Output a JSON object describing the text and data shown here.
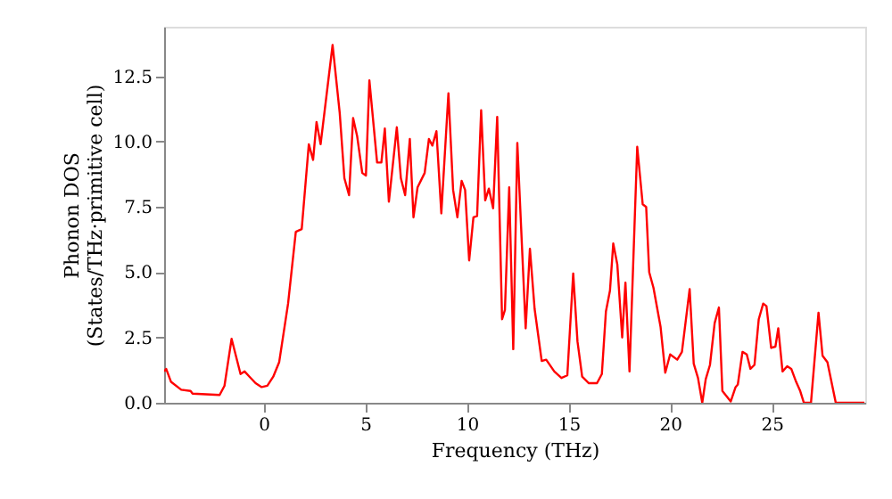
{
  "chart_data": {
    "type": "line",
    "xlabel": "Frequency (THz)",
    "ylabel": "Phonon DOS\n(States/THz·primitive cell)",
    "xlim": [
      -4.9,
      29.6
    ],
    "ylim": [
      0,
      14.4
    ],
    "xticks": [
      0,
      5,
      10,
      15,
      20,
      25
    ],
    "yticks": [
      {
        "value": 0,
        "label": "0.0"
      },
      2.5,
      {
        "value": 5,
        "label": "5.0"
      },
      7.5,
      {
        "value": 10,
        "label": "10.0"
      },
      12.5
    ],
    "grid": false,
    "marker": "none",
    "line_style": "solid",
    "series": [
      {
        "color": "#ff0000",
        "x": [
          -4.9,
          -4.8,
          -4.56,
          -4.06,
          -3.6,
          -3.5,
          -2.17,
          -1.93,
          -1.58,
          -1.14,
          -0.94,
          -0.7,
          -0.4,
          -0.1,
          0.18,
          0.47,
          0.76,
          1.2,
          1.58,
          1.87,
          2.22,
          2.43,
          2.6,
          2.8,
          3.39,
          3.74,
          3.97,
          4.2,
          4.4,
          4.6,
          4.85,
          5.03,
          5.2,
          5.58,
          5.79,
          5.96,
          6.16,
          6.55,
          6.75,
          6.96,
          7.19,
          7.37,
          7.57,
          7.92,
          8.13,
          8.3,
          8.5,
          8.74,
          9.09,
          9.32,
          9.53,
          9.74,
          9.91,
          10.11,
          10.32,
          10.5,
          10.7,
          10.9,
          11.08,
          11.29,
          11.49,
          11.73,
          11.87,
          12.08,
          12.28,
          12.48,
          12.89,
          13.1,
          13.33,
          13.68,
          13.9,
          14.3,
          14.65,
          14.94,
          15.23,
          15.44,
          15.67,
          16.0,
          16.4,
          16.64,
          16.84,
          17.04,
          17.2,
          17.4,
          17.64,
          17.8,
          18.0,
          18.38,
          18.65,
          18.82,
          18.97,
          19.18,
          19.53,
          19.76,
          20.0,
          20.35,
          20.58,
          20.96,
          21.16,
          21.37,
          21.58,
          21.75,
          21.96,
          22.19,
          22.4,
          22.57,
          22.98,
          23.22,
          23.33,
          23.56,
          23.77,
          23.95,
          24.15,
          24.36,
          24.58,
          24.74,
          24.97,
          25.18,
          25.32,
          25.53,
          25.76,
          25.96,
          26.2,
          26.4,
          26.58,
          26.93,
          27.3,
          27.5,
          27.74,
          28.15,
          29.56
        ],
        "values": [
          1.2,
          1.3,
          0.8,
          0.5,
          0.45,
          0.35,
          0.3,
          0.65,
          2.45,
          1.1,
          1.2,
          1.0,
          0.75,
          0.6,
          0.65,
          1.0,
          1.55,
          3.8,
          6.55,
          6.65,
          9.9,
          9.3,
          10.75,
          9.9,
          13.7,
          11.1,
          8.6,
          7.95,
          10.9,
          10.2,
          8.8,
          8.7,
          12.35,
          9.2,
          9.2,
          10.5,
          7.7,
          10.55,
          8.6,
          7.95,
          10.1,
          7.1,
          8.25,
          8.8,
          10.1,
          9.85,
          10.4,
          7.25,
          11.85,
          8.15,
          7.1,
          8.5,
          8.15,
          5.45,
          7.1,
          7.15,
          11.2,
          7.75,
          8.2,
          7.45,
          10.95,
          3.2,
          3.55,
          8.25,
          2.05,
          9.95,
          2.85,
          5.9,
          3.6,
          1.6,
          1.65,
          1.2,
          0.95,
          1.05,
          4.95,
          2.35,
          1.0,
          0.75,
          0.75,
          1.1,
          3.5,
          4.3,
          6.1,
          5.3,
          2.5,
          4.6,
          1.2,
          9.8,
          7.6,
          7.5,
          5.0,
          4.4,
          2.9,
          1.15,
          1.85,
          1.65,
          1.95,
          4.35,
          1.5,
          0.95,
          0.0,
          0.9,
          1.45,
          3.05,
          3.65,
          0.45,
          0.05,
          0.6,
          0.7,
          1.95,
          1.85,
          1.3,
          1.45,
          3.2,
          3.8,
          3.7,
          2.1,
          2.15,
          2.85,
          1.2,
          1.4,
          1.3,
          0.8,
          0.45,
          0.0,
          0.0,
          3.45,
          1.8,
          1.55,
          0.0,
          0.0
        ]
      }
    ]
  }
}
